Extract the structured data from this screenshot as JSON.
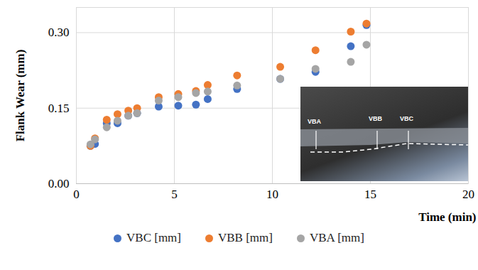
{
  "chart_data": {
    "type": "scatter",
    "x_label": "Time (min)",
    "y_label": "Flank Wear (mm)",
    "x": [
      0.72,
      0.95,
      1.55,
      2.1,
      2.65,
      3.1,
      4.2,
      5.2,
      6.1,
      6.7,
      8.2,
      10.4,
      12.2,
      14.0,
      14.8
    ],
    "series": [
      {
        "name": "VBC [mm]",
        "color": "#4472c4",
        "marker": "circle",
        "values": [
          0.075,
          0.079,
          0.12,
          0.12,
          0.135,
          0.14,
          0.153,
          0.155,
          0.157,
          0.168,
          0.188,
          0.208,
          0.222,
          0.273,
          0.315
        ]
      },
      {
        "name": "VBB [mm]",
        "color": "#ed7d31",
        "marker": "circle",
        "values": [
          0.075,
          0.09,
          0.127,
          0.138,
          0.145,
          0.15,
          0.172,
          0.178,
          0.184,
          0.196,
          0.215,
          0.232,
          0.265,
          0.302,
          0.318
        ]
      },
      {
        "name": "VBA [mm]",
        "color": "#a5a5a5",
        "marker": "circle",
        "values": [
          0.078,
          0.088,
          0.112,
          0.125,
          0.135,
          0.14,
          0.165,
          0.172,
          0.18,
          0.183,
          0.195,
          0.208,
          0.228,
          0.242,
          0.276
        ]
      }
    ],
    "xlim": [
      0,
      20
    ],
    "xticks": [
      0,
      5,
      10,
      15,
      20
    ],
    "ylim": [
      0,
      0.35
    ],
    "yticks": [
      {
        "value": 0,
        "label": "0.00"
      },
      {
        "value": 0.15,
        "label": "0.15"
      },
      {
        "value": 0.3,
        "label": "0.30"
      }
    ],
    "grid": true,
    "legend": "bottom",
    "annotations": [
      "VBA",
      "VBB",
      "VBC"
    ]
  }
}
